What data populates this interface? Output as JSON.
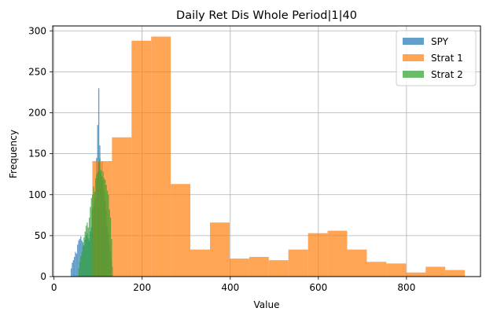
{
  "chart_data": {
    "type": "histogram",
    "title": "Daily Ret Dis Whole Period|1|40",
    "xlabel": "Value",
    "ylabel": "Frequency",
    "xlim": [
      -3,
      968
    ],
    "ylim": [
      0,
      306
    ],
    "xticks": [
      0,
      200,
      400,
      600,
      800
    ],
    "yticks": [
      0,
      50,
      100,
      150,
      200,
      250,
      300
    ],
    "grid": true,
    "legend_position": "top-right",
    "series": [
      {
        "name": "SPY",
        "color": "#1f77b4",
        "opacity": 0.7,
        "bin_width": 2.4,
        "bins": [
          [
            38,
            10
          ],
          [
            40.4,
            17
          ],
          [
            42.8,
            20
          ],
          [
            45.2,
            24
          ],
          [
            47.6,
            30
          ],
          [
            50,
            28
          ],
          [
            52.4,
            39
          ],
          [
            54.8,
            44
          ],
          [
            57.2,
            46
          ],
          [
            59.6,
            49
          ],
          [
            62,
            44
          ],
          [
            64.4,
            42
          ],
          [
            66.8,
            38
          ],
          [
            69.2,
            45
          ],
          [
            71.6,
            50
          ],
          [
            74,
            53
          ],
          [
            76.4,
            47
          ],
          [
            78.8,
            44
          ],
          [
            81.2,
            55
          ],
          [
            83.6,
            60
          ],
          [
            86,
            82
          ],
          [
            88.4,
            86
          ],
          [
            90.8,
            90
          ],
          [
            93.2,
            95
          ],
          [
            95.6,
            145
          ],
          [
            98,
            185
          ],
          [
            100.4,
            230
          ],
          [
            102.8,
            160
          ],
          [
            105.2,
            128
          ],
          [
            107.6,
            140
          ],
          [
            110,
            118
          ],
          [
            112.4,
            105
          ],
          [
            114.8,
            92
          ],
          [
            117.2,
            80
          ],
          [
            119.6,
            62
          ],
          [
            122,
            52
          ],
          [
            124.4,
            40
          ],
          [
            126.8,
            30
          ],
          [
            129.2,
            21
          ],
          [
            131.6,
            12
          ]
        ]
      },
      {
        "name": "Strat 1",
        "color": "#ff7f0e",
        "opacity": 0.7,
        "bin_width": 44.5,
        "bins": [
          [
            87,
            141
          ],
          [
            131.5,
            170
          ],
          [
            176,
            288
          ],
          [
            220.5,
            293
          ],
          [
            265,
            113
          ],
          [
            309.5,
            33
          ],
          [
            354,
            66
          ],
          [
            398.5,
            22
          ],
          [
            443,
            24
          ],
          [
            487.5,
            20
          ],
          [
            532,
            33
          ],
          [
            576.5,
            53
          ],
          [
            621,
            56
          ],
          [
            665.5,
            33
          ],
          [
            710,
            18
          ],
          [
            754.5,
            16
          ],
          [
            799,
            5
          ],
          [
            843.5,
            12
          ],
          [
            888,
            8
          ]
        ]
      },
      {
        "name": "Strat 2",
        "color": "#2ca02c",
        "opacity": 0.7,
        "bin_width": 2.4,
        "bins": [
          [
            55,
            10
          ],
          [
            57.4,
            18
          ],
          [
            59.8,
            25
          ],
          [
            62.2,
            30
          ],
          [
            64.6,
            38
          ],
          [
            67,
            48
          ],
          [
            69.4,
            55
          ],
          [
            71.8,
            62
          ],
          [
            74.2,
            66
          ],
          [
            76.6,
            60
          ],
          [
            79,
            72
          ],
          [
            81.4,
            85
          ],
          [
            83.8,
            96
          ],
          [
            86.2,
            100
          ],
          [
            88.6,
            110
          ],
          [
            91,
            104
          ],
          [
            93.4,
            120
          ],
          [
            95.8,
            125
          ],
          [
            98.2,
            128
          ],
          [
            100.6,
            140
          ],
          [
            103,
            145
          ],
          [
            105.4,
            130
          ],
          [
            107.8,
            122
          ],
          [
            110.2,
            128
          ],
          [
            112.6,
            120
          ],
          [
            115,
            118
          ],
          [
            117.4,
            112
          ],
          [
            119.8,
            105
          ],
          [
            122.2,
            100
          ],
          [
            124.6,
            82
          ],
          [
            127,
            72
          ],
          [
            129.4,
            46
          ]
        ]
      }
    ]
  }
}
